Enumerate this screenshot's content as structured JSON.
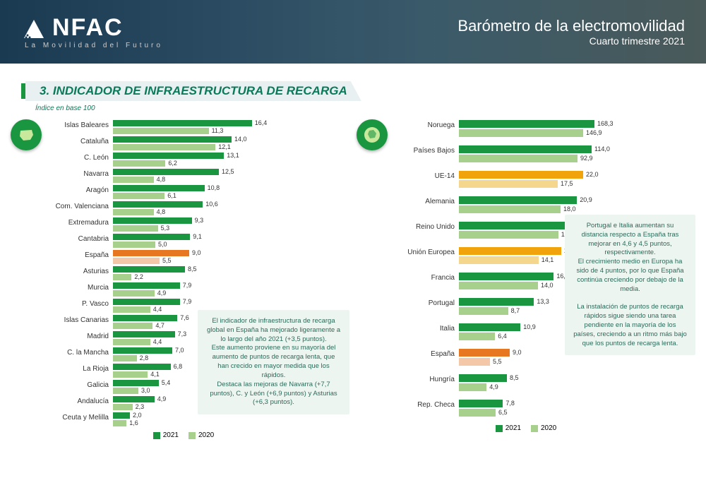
{
  "header": {
    "logo_text": "NFAC",
    "tagline": "La Movilidad del Futuro",
    "title": "Barómetro de la electromovilidad",
    "subtitle": "Cuarto trimestre 2021"
  },
  "section": {
    "title": "3. INDICADOR DE INFRAESTRUCTURA DE RECARGA",
    "subtitle": "Índice en base 100"
  },
  "colors": {
    "bar_2021": "#1a9641",
    "bar_2020": "#a8d08d",
    "bar_2021_hl": "#e87722",
    "bar_2020_hl": "#f4c7a8",
    "bar_2021_alt": "#f0a30a",
    "bar_2020_alt": "#f4d78c",
    "bg_textbox": "#edf5f0",
    "section_text": "#0a7a5a"
  },
  "spain_chart": {
    "type": "bar",
    "max": 18,
    "rows": [
      {
        "label": "Islas Baleares",
        "v21": 16.4,
        "v20": 11.3,
        "hl": false
      },
      {
        "label": "Cataluña",
        "v21": 14.0,
        "v20": 12.1,
        "hl": false
      },
      {
        "label": "C. León",
        "v21": 13.1,
        "v20": 6.2,
        "hl": false
      },
      {
        "label": "Navarra",
        "v21": 12.5,
        "v20": 4.8,
        "hl": false
      },
      {
        "label": "Aragón",
        "v21": 10.8,
        "v20": 6.1,
        "hl": false
      },
      {
        "label": "Com. Valenciana",
        "v21": 10.6,
        "v20": 4.8,
        "hl": false
      },
      {
        "label": "Extremadura",
        "v21": 9.3,
        "v20": 5.3,
        "hl": false
      },
      {
        "label": "Cantabria",
        "v21": 9.1,
        "v20": 5.0,
        "hl": false
      },
      {
        "label": "España",
        "v21": 9.0,
        "v20": 5.5,
        "hl": true
      },
      {
        "label": "Asturias",
        "v21": 8.5,
        "v20": 2.2,
        "hl": false
      },
      {
        "label": "Murcia",
        "v21": 7.9,
        "v20": 4.9,
        "hl": false
      },
      {
        "label": "P. Vasco",
        "v21": 7.9,
        "v20": 4.4,
        "hl": false
      },
      {
        "label": "Islas Canarias",
        "v21": 7.6,
        "v20": 4.7,
        "hl": false
      },
      {
        "label": "Madrid",
        "v21": 7.3,
        "v20": 4.4,
        "hl": false
      },
      {
        "label": "C. la Mancha",
        "v21": 7.0,
        "v20": 2.8,
        "hl": false
      },
      {
        "label": "La Rioja",
        "v21": 6.8,
        "v20": 4.1,
        "hl": false
      },
      {
        "label": "Galicia",
        "v21": 5.4,
        "v20": 3.0,
        "hl": false
      },
      {
        "label": "Andalucía",
        "v21": 4.9,
        "v20": 2.3,
        "hl": false
      },
      {
        "label": "Ceuta y Melilla",
        "v21": 2.0,
        "v20": 1.6,
        "hl": false
      }
    ]
  },
  "europe_chart": {
    "type": "bar",
    "max": 25,
    "rows": [
      {
        "label": "Noruega",
        "v21": 168.3,
        "v20": 146.9,
        "hl": false,
        "broken": true,
        "disp21": 24,
        "disp20": 22
      },
      {
        "label": "Países Bajos",
        "v21": 114.0,
        "v20": 92.9,
        "hl": false,
        "broken": true,
        "disp21": 23.5,
        "disp20": 21
      },
      {
        "label": "UE-14",
        "v21": 22.0,
        "v20": 17.5,
        "alt": true
      },
      {
        "label": "Alemania",
        "v21": 20.9,
        "v20": 18.0,
        "hl": false
      },
      {
        "label": "Reino Unido",
        "v21": 20.3,
        "v20": 17.6,
        "hl": false
      },
      {
        "label": "Unión Europea",
        "v21": 18.1,
        "v20": 14.1,
        "alt": true
      },
      {
        "label": "Francia",
        "v21": 16.8,
        "v20": 14.0,
        "hl": false
      },
      {
        "label": "Portugal",
        "v21": 13.3,
        "v20": 8.7,
        "hl": false
      },
      {
        "label": "Italia",
        "v21": 10.9,
        "v20": 6.4,
        "hl": false
      },
      {
        "label": "España",
        "v21": 9.0,
        "v20": 5.5,
        "hl": true
      },
      {
        "label": "Hungría",
        "v21": 8.5,
        "v20": 4.9,
        "hl": false
      },
      {
        "label": "Rep. Checa",
        "v21": 7.8,
        "v20": 6.5,
        "hl": false
      }
    ]
  },
  "textbox_left": "El indicador de infraestructura de recarga global en España ha mejorado ligeramente a lo largo del año 2021 (+3,5 puntos).\nEste aumento proviene en su mayoría del aumento de puntos de recarga lenta, que han crecido en mayor medida que los rápidos.\nDestaca las mejoras de Navarra (+7,7 puntos), C. y León (+6,9 puntos) y Asturias (+6,3 puntos).",
  "textbox_right": "Portugal e Italia aumentan su distancia respecto a España tras mejorar en 4,6 y 4,5 puntos, respectivamente.\nEl crecimiento medio en Europa ha sido de 4 puntos, por lo que España continúa creciendo por debajo de la media.\n\nLa instalación de puntos de recarga rápidos sigue siendo una tarea pendiente en la mayoría de los países, creciendo a un ritmo más bajo que los puntos de recarga lenta.",
  "legend": {
    "y2021": "2021",
    "y2020": "2020"
  }
}
